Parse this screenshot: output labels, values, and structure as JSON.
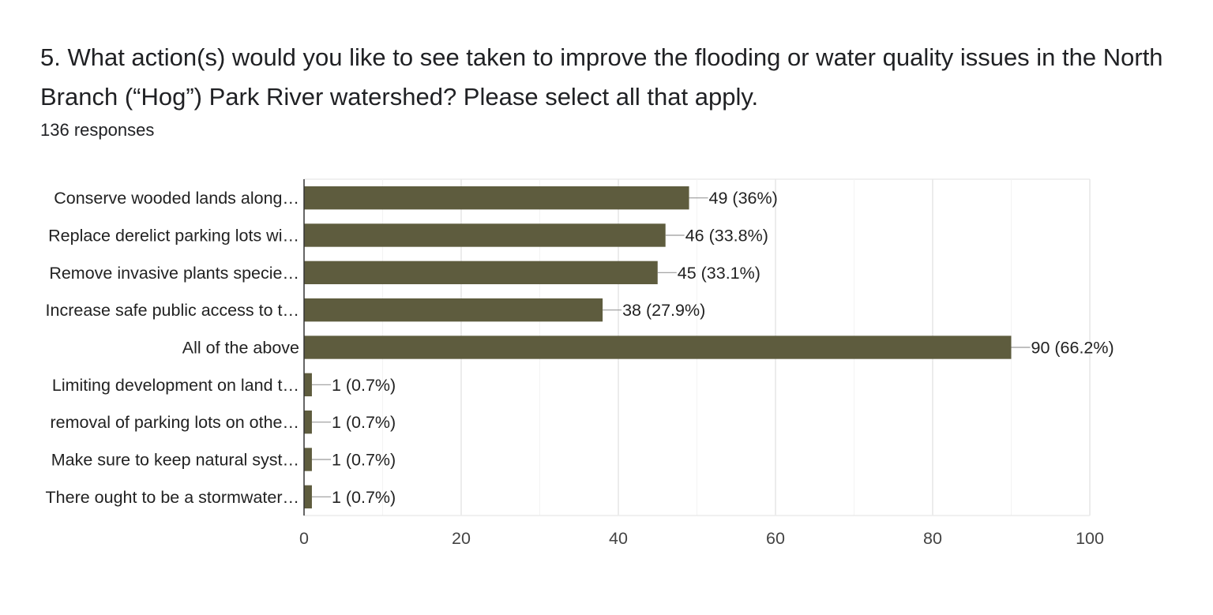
{
  "question": {
    "title": "5. What action(s) would you like to see taken to improve the flooding or water quality issues in the North Branch (“Hog”) Park River watershed? Please select all that apply.",
    "responses": "136 responses"
  },
  "chart_data": {
    "type": "bar",
    "orientation": "horizontal",
    "categories": [
      "Conserve wooded lands along…",
      "Replace derelict parking lots wi…",
      "Remove invasive plants specie…",
      "Increase safe public access to t…",
      "All of the above",
      "Limiting development on land t…",
      "removal of parking lots on othe…",
      "Make sure to keep natural syst…",
      "There ought to be a stormwater…"
    ],
    "values": [
      49,
      46,
      45,
      38,
      90,
      1,
      1,
      1,
      1
    ],
    "data_labels": [
      "49 (36%)",
      "46 (33.8%)",
      "45 (33.1%)",
      "38 (27.9%)",
      "90 (66.2%)",
      "1 (0.7%)",
      "1 (0.7%)",
      "1 (0.7%)",
      "1 (0.7%)"
    ],
    "xlim": [
      0,
      100
    ],
    "x_ticks": [
      0,
      20,
      40,
      60,
      80,
      100
    ],
    "grid": true,
    "bar_color": "#5e5c3e",
    "title": "",
    "xlabel": "",
    "ylabel": ""
  }
}
